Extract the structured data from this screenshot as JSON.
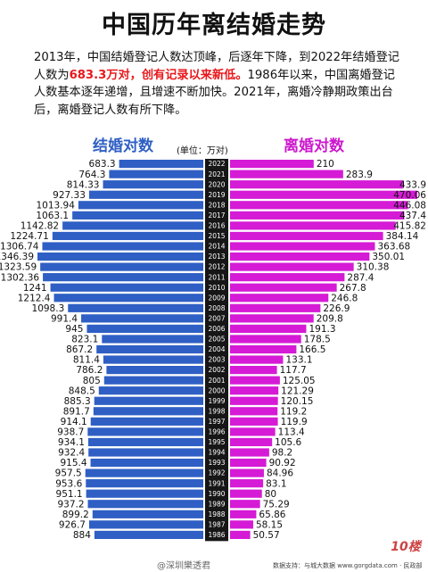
{
  "title": "中国历年离结婚走势",
  "intro": {
    "part1": "2013年，中国结婚登记人数达顶峰，后逐年下降，到2022年结婚登记人数为",
    "highlight": "683.3万对，创有记录以来新低。",
    "part2": "1986年以来，中国离婚登记人数基本逐年递增，且增速不断加快。2021年，离婚冷静期政策出台后，离婚登记人数有所下降。"
  },
  "headers": {
    "marriage": "结婚对数",
    "divorce": "离婚对数",
    "unit": "(单位：万对)"
  },
  "colors": {
    "marriage": "#2f5fc4",
    "divorce": "#d51bd5",
    "year_bg": "#161616",
    "highlight": "#e8181b"
  },
  "footer": {
    "weibo": "@深圳樂透君",
    "source": "数据支持：与城大数据 www.gorgdata.com · 民政部"
  },
  "chart_data": {
    "type": "bar",
    "orientation": "horizontal-butterfly",
    "categories": [
      "2022",
      "2021",
      "2020",
      "2019",
      "2018",
      "2017",
      "2016",
      "2015",
      "2014",
      "2013",
      "2012",
      "2011",
      "2010",
      "2009",
      "2008",
      "2007",
      "2006",
      "2005",
      "2004",
      "2003",
      "2002",
      "2001",
      "2000",
      "1999",
      "1998",
      "1997",
      "1996",
      "1995",
      "1994",
      "1993",
      "1992",
      "1991",
      "1990",
      "1989",
      "1988",
      "1987",
      "1986"
    ],
    "series": [
      {
        "name": "结婚对数",
        "values": [
          683.3,
          764.3,
          814.33,
          927.33,
          1013.94,
          1063.1,
          1142.82,
          1224.71,
          1306.74,
          1346.39,
          1323.59,
          1302.36,
          1241,
          1212.4,
          1098.3,
          991.4,
          945,
          823.1,
          867.2,
          811.4,
          786.2,
          805,
          848.5,
          885.3,
          891.7,
          914.1,
          938.7,
          934.1,
          932.4,
          915.4,
          957.5,
          953.6,
          951.1,
          937.2,
          899.2,
          926.7,
          884
        ]
      },
      {
        "name": "离婚对数",
        "values": [
          210,
          283.9,
          433.9,
          470.06,
          446.08,
          437.4,
          415.82,
          384.14,
          363.68,
          350.01,
          310.38,
          287.4,
          267.8,
          246.8,
          226.9,
          209.8,
          191.3,
          178.5,
          166.5,
          133.1,
          117.7,
          125.05,
          121.29,
          120.15,
          119.2,
          119.9,
          113.4,
          105.6,
          98.2,
          90.92,
          84.96,
          83.1,
          80,
          75.29,
          65.86,
          58.15,
          50.57
        ]
      }
    ],
    "value_labels": {
      "marriage": [
        "683.3",
        "764.3",
        "814.33",
        "927.33",
        "1013.94",
        "1063.1",
        "1142.82",
        "1224.71",
        "1306.74",
        "1346.39",
        "1323.59",
        "1302.36",
        "1241",
        "1212.4",
        "1098.3",
        "991.4",
        "945",
        "823.1",
        "867.2",
        "811.4",
        "786.2",
        "805",
        "848.5",
        "885.3",
        "891.7",
        "914.1",
        "938.7",
        "934.1",
        "932.4",
        "915.4",
        "957.5",
        "953.6",
        "951.1",
        "937.2",
        "899.2",
        "926.7",
        "884"
      ],
      "divorce": [
        "210",
        "283.9",
        "433.9",
        "470.06",
        "446.08",
        "437.4",
        "415.82",
        "384.14",
        "363.68",
        "350.01",
        "310.38",
        "287.4",
        "267.8",
        "246.8",
        "226.9",
        "209.8",
        "191.3",
        "178.5",
        "166.5",
        "133.1",
        "117.7",
        "125.05",
        "121.29",
        "120.15",
        "119.2",
        "119.9",
        "113.4",
        "105.6",
        "98.2",
        "90.92",
        "84.96",
        "83.1",
        "80",
        "75.29",
        "65.86",
        "58.15",
        "50.57"
      ]
    },
    "title": "中国历年离结婚走势",
    "xlabel": "",
    "ylabel": "",
    "grid": false
  }
}
